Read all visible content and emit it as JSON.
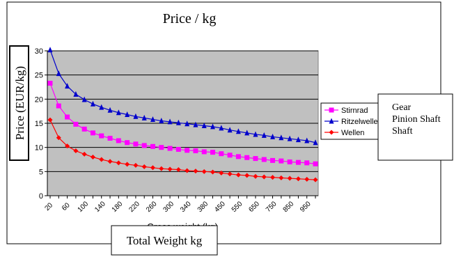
{
  "chart_data": {
    "type": "line",
    "title": "Price / kg",
    "ylabel": "Price (EUR/kg)",
    "xlabel": "Gross weight (kg)",
    "xlabel_overlay": "Total Weight kg",
    "ylim": [
      0,
      30
    ],
    "yticks": [
      0,
      5,
      10,
      15,
      20,
      25,
      30
    ],
    "grid": true,
    "legend_position": "right",
    "x": [
      20,
      40,
      60,
      80,
      100,
      120,
      140,
      160,
      180,
      200,
      220,
      240,
      260,
      280,
      300,
      320,
      340,
      360,
      380,
      400,
      450,
      500,
      550,
      600,
      650,
      700,
      750,
      800,
      850,
      900,
      950,
      1000
    ],
    "x_tick_labels": [
      "20",
      "60",
      "100",
      "140",
      "180",
      "220",
      "260",
      "300",
      "340",
      "380",
      "450",
      "550",
      "650",
      "750",
      "850",
      "950"
    ],
    "series": [
      {
        "name": "Stirnrad",
        "color": "#ff00ff",
        "marker": "square",
        "values": [
          23.3,
          18.6,
          16.3,
          14.8,
          13.8,
          13.0,
          12.4,
          11.9,
          11.4,
          11.0,
          10.7,
          10.4,
          10.2,
          10.0,
          9.8,
          9.6,
          9.4,
          9.3,
          9.1,
          9.0,
          8.7,
          8.4,
          8.1,
          7.9,
          7.7,
          7.5,
          7.3,
          7.2,
          7.0,
          6.9,
          6.8,
          6.6
        ]
      },
      {
        "name": "Ritzelwelle",
        "color": "#0000cc",
        "marker": "triangle",
        "values": [
          30.2,
          25.3,
          22.7,
          21.0,
          19.9,
          19.0,
          18.3,
          17.7,
          17.2,
          16.8,
          16.4,
          16.1,
          15.8,
          15.5,
          15.3,
          15.1,
          14.9,
          14.7,
          14.5,
          14.3,
          14.0,
          13.6,
          13.3,
          13.0,
          12.7,
          12.5,
          12.2,
          12.0,
          11.8,
          11.6,
          11.4,
          11.0
        ]
      },
      {
        "name": "Wellen",
        "color": "#ff0000",
        "marker": "diamond",
        "values": [
          15.7,
          12.0,
          10.3,
          9.3,
          8.6,
          8.0,
          7.5,
          7.1,
          6.8,
          6.5,
          6.3,
          6.0,
          5.8,
          5.6,
          5.5,
          5.4,
          5.2,
          5.1,
          5.0,
          4.9,
          4.7,
          4.5,
          4.3,
          4.2,
          4.0,
          3.9,
          3.8,
          3.7,
          3.6,
          3.5,
          3.4,
          3.3
        ]
      }
    ],
    "translation_box": [
      "Gear",
      "Pinion Shaft",
      "Shaft"
    ]
  }
}
